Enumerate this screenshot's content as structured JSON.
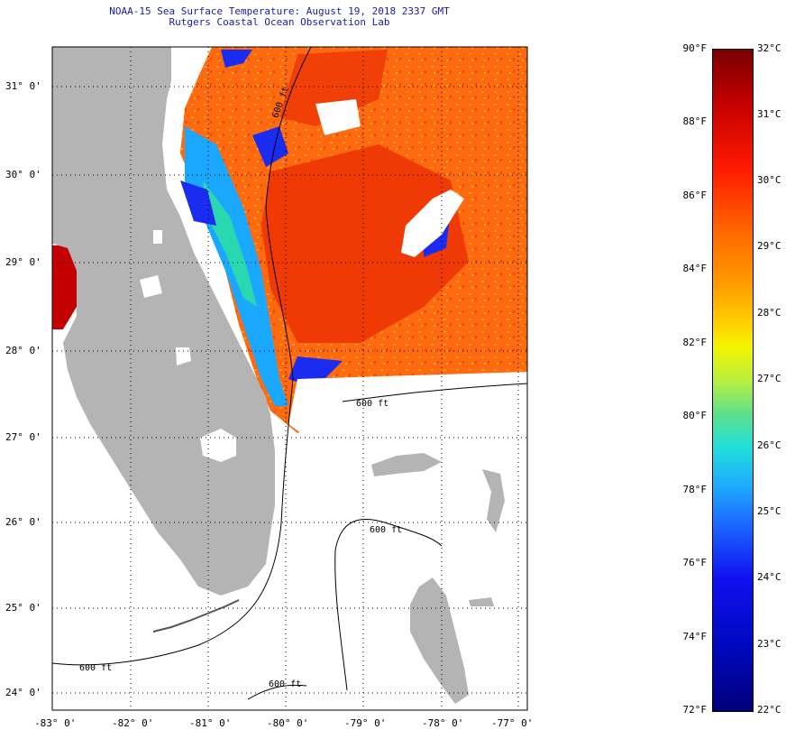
{
  "title": {
    "line1": "NOAA-15 Sea Surface Temperature:  August 19, 2018 2337 GMT",
    "line2": "Rutgers Coastal Ocean Observation Lab"
  },
  "map": {
    "lat_labels": [
      "31° 0'",
      "30° 0'",
      "29° 0'",
      "28° 0'",
      "27° 0'",
      "26° 0'",
      "25° 0'",
      "24° 0'"
    ],
    "lon_labels": [
      "-83° 0'",
      "-82° 0'",
      "-81° 0'",
      "-80° 0'",
      "-79° 0'",
      "-78° 0'",
      "-77° 0'"
    ],
    "contour_label": "600 ft",
    "colors": {
      "land": "#b4b4b4",
      "water_warm": "#ff6a10",
      "water_cool": "#1a3cff",
      "cloud": "#ffffff"
    }
  },
  "colorbar": {
    "fahrenheit_ticks": [
      "90°F",
      "88°F",
      "86°F",
      "84°F",
      "82°F",
      "80°F",
      "78°F",
      "76°F",
      "74°F",
      "72°F"
    ],
    "celsius_ticks": [
      "32°C",
      "31°C",
      "30°C",
      "29°C",
      "28°C",
      "27°C",
      "26°C",
      "25°C",
      "24°C",
      "23°C",
      "22°C"
    ]
  }
}
